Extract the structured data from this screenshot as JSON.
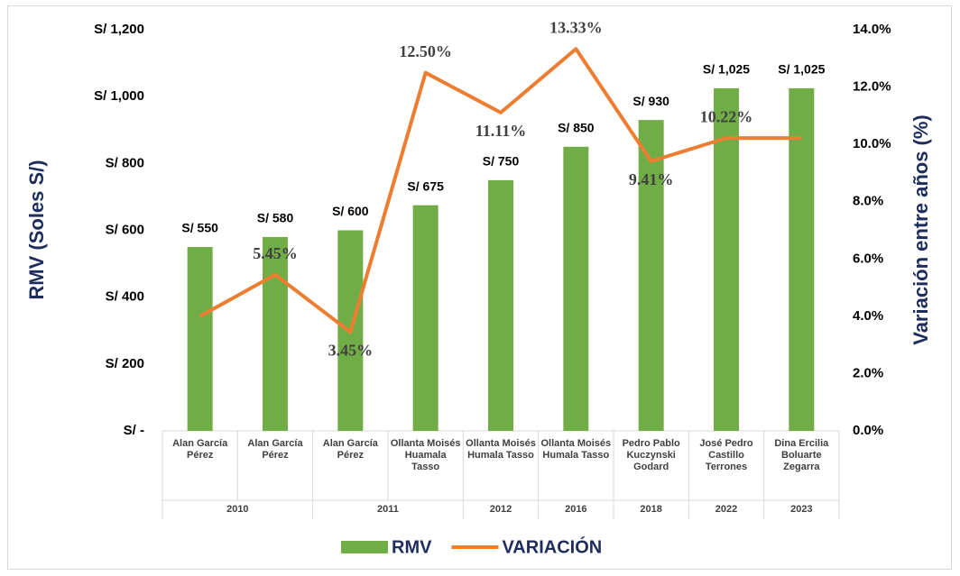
{
  "chart_data": {
    "type": "bar_line",
    "ylabel": "RMV (Soles S/)",
    "y2label": "Variación entre años (%)",
    "categories": [
      "Alan García Pérez",
      "Alan García Pérez",
      "Alan García Pérez",
      "Ollanta Moisés Huamala Tasso",
      "Ollanta Moisés Humala Tasso",
      "Ollanta Moisés Humala Tasso",
      "Pedro Pablo Kuczynski Godard",
      "José Pedro Castillo Terrones",
      "Dina Ercilia Boluarte Zegarra"
    ],
    "years": [
      "2010",
      null,
      "2011",
      null,
      "2012",
      "2016",
      "2018",
      "2022",
      "2023"
    ],
    "series": [
      {
        "name": "RMV",
        "type": "bar",
        "color": "#70ad47",
        "values": [
          550,
          580,
          600,
          675,
          750,
          850,
          930,
          1025,
          1025
        ],
        "value_labels": [
          "S/ 550",
          "S/ 580",
          "S/ 600",
          "S/ 675",
          "S/ 750",
          "S/ 850",
          "S/ 930",
          "S/ 1,025",
          "S/ 1,025"
        ]
      },
      {
        "name": "VARIACIÓN",
        "type": "line",
        "axis": "y2",
        "color": "#ed7d31",
        "values": [
          4.0,
          5.45,
          3.45,
          12.5,
          11.11,
          13.33,
          9.41,
          10.22,
          10.22
        ],
        "value_labels": [
          null,
          "5.45%",
          "3.45%",
          "12.50%",
          "11.11%",
          "13.33%",
          "9.41%",
          "10.22%",
          null
        ]
      }
    ],
    "ylim": [
      0,
      1200
    ],
    "yticks": [
      {
        "value": 0,
        "label": "S/ -"
      },
      {
        "value": 200,
        "label": "S/ 200"
      },
      {
        "value": 400,
        "label": "S/ 400"
      },
      {
        "value": 600,
        "label": "S/ 600"
      },
      {
        "value": 800,
        "label": "S/ 800"
      },
      {
        "value": 1000,
        "label": "S/ 1,000"
      },
      {
        "value": 1200,
        "label": "S/ 1,200"
      }
    ],
    "y2lim": [
      0,
      14
    ],
    "y2ticks": [
      {
        "value": 0,
        "label": "0.0%"
      },
      {
        "value": 2,
        "label": "2.0%"
      },
      {
        "value": 4,
        "label": "4.0%"
      },
      {
        "value": 6,
        "label": "6.0%"
      },
      {
        "value": 8,
        "label": "8.0%"
      },
      {
        "value": 10,
        "label": "10.0%"
      },
      {
        "value": 12,
        "label": "12.0%"
      },
      {
        "value": 14,
        "label": "14.0%"
      }
    ],
    "legend": "bottom"
  }
}
